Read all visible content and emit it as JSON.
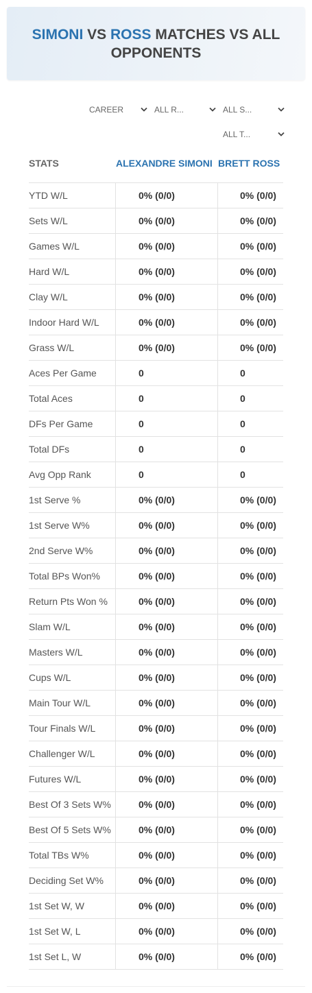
{
  "header": {
    "name1": "SIMONI",
    "vs": "VS",
    "name2": "ROSS",
    "rest": "MATCHES VS ALL OPPONENTS"
  },
  "filters": [
    "CAREER",
    "ALL R...",
    "ALL S...",
    "ALL T..."
  ],
  "table": {
    "columns": [
      "STATS",
      "ALEXANDRE SIMONI",
      "BRETT ROSS"
    ],
    "rows": [
      [
        "YTD W/L",
        "0% (0/0)",
        "0% (0/0)"
      ],
      [
        "Sets W/L",
        "0% (0/0)",
        "0% (0/0)"
      ],
      [
        "Games W/L",
        "0% (0/0)",
        "0% (0/0)"
      ],
      [
        "Hard W/L",
        "0% (0/0)",
        "0% (0/0)"
      ],
      [
        "Clay W/L",
        "0% (0/0)",
        "0% (0/0)"
      ],
      [
        "Indoor Hard W/L",
        "0% (0/0)",
        "0% (0/0)"
      ],
      [
        "Grass W/L",
        "0% (0/0)",
        "0% (0/0)"
      ],
      [
        "Aces Per Game",
        "0",
        "0"
      ],
      [
        "Total Aces",
        "0",
        "0"
      ],
      [
        "DFs Per Game",
        "0",
        "0"
      ],
      [
        "Total DFs",
        "0",
        "0"
      ],
      [
        "Avg Opp Rank",
        "0",
        "0"
      ],
      [
        "1st Serve %",
        "0% (0/0)",
        "0% (0/0)"
      ],
      [
        "1st Serve W%",
        "0% (0/0)",
        "0% (0/0)"
      ],
      [
        "2nd Serve W%",
        "0% (0/0)",
        "0% (0/0)"
      ],
      [
        "Total BPs Won%",
        "0% (0/0)",
        "0% (0/0)"
      ],
      [
        "Return Pts Won %",
        "0% (0/0)",
        "0% (0/0)"
      ],
      [
        "Slam W/L",
        "0% (0/0)",
        "0% (0/0)"
      ],
      [
        "Masters W/L",
        "0% (0/0)",
        "0% (0/0)"
      ],
      [
        "Cups W/L",
        "0% (0/0)",
        "0% (0/0)"
      ],
      [
        "Main Tour W/L",
        "0% (0/0)",
        "0% (0/0)"
      ],
      [
        "Tour Finals W/L",
        "0% (0/0)",
        "0% (0/0)"
      ],
      [
        "Challenger W/L",
        "0% (0/0)",
        "0% (0/0)"
      ],
      [
        "Futures W/L",
        "0% (0/0)",
        "0% (0/0)"
      ],
      [
        "Best Of 3 Sets W%",
        "0% (0/0)",
        "0% (0/0)"
      ],
      [
        "Best Of 5 Sets W%",
        "0% (0/0)",
        "0% (0/0)"
      ],
      [
        "Total TBs W%",
        "0% (0/0)",
        "0% (0/0)"
      ],
      [
        "Deciding Set W%",
        "0% (0/0)",
        "0% (0/0)"
      ],
      [
        "1st Set W, W",
        "0% (0/0)",
        "0% (0/0)"
      ],
      [
        "1st Set W, L",
        "0% (0/0)",
        "0% (0/0)"
      ],
      [
        "1st Set L, W",
        "0% (0/0)",
        "0% (0/0)"
      ]
    ]
  }
}
